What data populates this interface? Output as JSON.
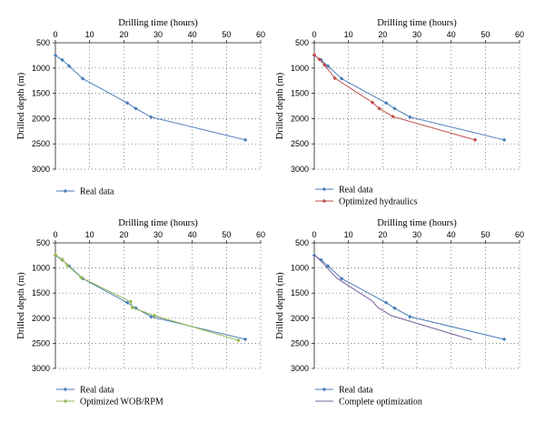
{
  "chart_data": [
    {
      "type": "line",
      "x_title": "Drilling time (hours)",
      "y_title": "Drilled depth (m)",
      "xlim": [
        0,
        60
      ],
      "ylim": [
        500,
        3000
      ],
      "x_ticks": [
        0,
        10,
        20,
        30,
        40,
        50,
        60
      ],
      "y_ticks": [
        500,
        1000,
        1500,
        2000,
        2500,
        3000
      ],
      "y_reversed": true,
      "x_axis_position": "top",
      "grid": "dotted",
      "legend_position": "bottom-left",
      "series": [
        {
          "name": "Real data",
          "color": "#4a7ebb",
          "marker": "diamond",
          "points": [
            [
              0,
              750
            ],
            [
              2,
              840
            ],
            [
              4,
              960
            ],
            [
              8,
              1210
            ],
            [
              21,
              1690
            ],
            [
              23.5,
              1800
            ],
            [
              28,
              1970
            ],
            [
              55.5,
              2420
            ]
          ]
        }
      ]
    },
    {
      "type": "line",
      "x_title": "Drilling time (hours)",
      "y_title": "Drilled depth (m)",
      "xlim": [
        0,
        60
      ],
      "ylim": [
        500,
        3000
      ],
      "x_ticks": [
        0,
        10,
        20,
        30,
        40,
        50,
        60
      ],
      "y_ticks": [
        500,
        1000,
        1500,
        2000,
        2500,
        3000
      ],
      "y_reversed": true,
      "x_axis_position": "top",
      "grid": "dotted",
      "legend_position": "bottom-left",
      "series": [
        {
          "name": "Real data",
          "color": "#4a7ebb",
          "marker": "diamond",
          "points": [
            [
              0,
              750
            ],
            [
              2,
              840
            ],
            [
              4,
              960
            ],
            [
              8,
              1210
            ],
            [
              21,
              1690
            ],
            [
              23.5,
              1800
            ],
            [
              28,
              1970
            ],
            [
              55.5,
              2420
            ]
          ]
        },
        {
          "name": "Optimized hydraulics",
          "color": "#be4b48",
          "marker": "diamond",
          "points": [
            [
              0,
              740
            ],
            [
              1.5,
              830
            ],
            [
              3,
              940
            ],
            [
              6,
              1200
            ],
            [
              17,
              1680
            ],
            [
              19,
              1800
            ],
            [
              23,
              1960
            ],
            [
              47,
              2420
            ]
          ]
        }
      ]
    },
    {
      "type": "line",
      "x_title": "Drilling time (hours)",
      "y_title": "Drilled depth (m)",
      "xlim": [
        0,
        60
      ],
      "ylim": [
        500,
        3000
      ],
      "x_ticks": [
        0,
        10,
        20,
        30,
        40,
        50,
        60
      ],
      "y_ticks": [
        500,
        1000,
        1500,
        2000,
        2500,
        3000
      ],
      "y_reversed": true,
      "x_axis_position": "top",
      "grid": "dotted",
      "legend_position": "bottom-left",
      "series": [
        {
          "name": "Real data",
          "color": "#4a7ebb",
          "marker": "diamond",
          "points": [
            [
              0,
              750
            ],
            [
              2,
              840
            ],
            [
              4,
              960
            ],
            [
              8,
              1210
            ],
            [
              21,
              1690
            ],
            [
              23.5,
              1800
            ],
            [
              28,
              1970
            ],
            [
              55.5,
              2420
            ]
          ]
        },
        {
          "name": "Optimized WOB/RPM",
          "color": "#98b954",
          "marker": "diamond",
          "points": [
            [
              0,
              740
            ],
            [
              2,
              830
            ],
            [
              3.5,
              950
            ],
            [
              7.5,
              1190
            ],
            [
              22,
              1670
            ],
            [
              22.5,
              1790
            ],
            [
              29,
              1950
            ],
            [
              53.5,
              2440
            ]
          ]
        }
      ]
    },
    {
      "type": "line",
      "x_title": "Drilling time (hours)",
      "y_title": "Drilled depth (m)",
      "xlim": [
        0,
        60
      ],
      "ylim": [
        500,
        3000
      ],
      "x_ticks": [
        0,
        10,
        20,
        30,
        40,
        50,
        60
      ],
      "y_ticks": [
        500,
        1000,
        1500,
        2000,
        2500,
        3000
      ],
      "y_reversed": true,
      "x_axis_position": "top",
      "grid": "dotted",
      "legend_position": "bottom-left",
      "series": [
        {
          "name": "Real data",
          "color": "#4a7ebb",
          "marker": "diamond",
          "points": [
            [
              0,
              750
            ],
            [
              2,
              840
            ],
            [
              4,
              960
            ],
            [
              8,
              1210
            ],
            [
              21,
              1690
            ],
            [
              23.5,
              1800
            ],
            [
              28,
              1970
            ],
            [
              55.5,
              2420
            ]
          ]
        },
        {
          "name": "Complete optimization",
          "color": "#7d60a0",
          "marker": "none",
          "points": [
            [
              0,
              740
            ],
            [
              1.5,
              830
            ],
            [
              3,
              940
            ],
            [
              6.5,
              1200
            ],
            [
              17,
              1660
            ],
            [
              18.5,
              1780
            ],
            [
              22.5,
              1950
            ],
            [
              46,
              2430
            ]
          ]
        }
      ]
    }
  ]
}
